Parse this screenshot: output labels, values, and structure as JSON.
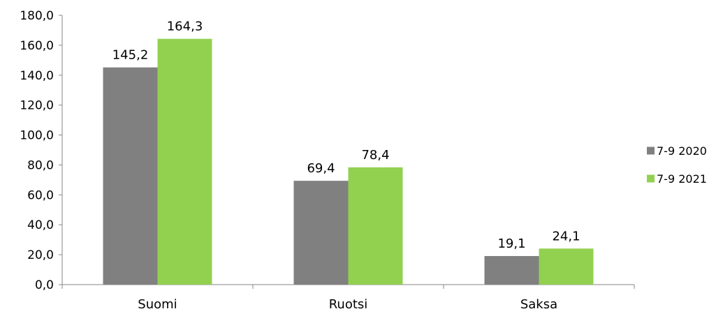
{
  "chart_data": {
    "type": "bar",
    "title": "",
    "xlabel": "",
    "ylabel": "",
    "categories": [
      "Suomi",
      "Ruotsi",
      "Saksa"
    ],
    "series": [
      {
        "name": "7-9 2020",
        "color": "#808080",
        "values": [
          145.2,
          69.4,
          19.1
        ],
        "labels": [
          "145,2",
          "69,4",
          "19,1"
        ]
      },
      {
        "name": "7-9 2021",
        "color": "#92d050",
        "values": [
          164.3,
          78.4,
          24.1
        ],
        "labels": [
          "164,3",
          "78,4",
          "24,1"
        ]
      }
    ],
    "ylim": [
      0,
      180
    ],
    "yticks": [
      0,
      20,
      40,
      60,
      80,
      100,
      120,
      140,
      160,
      180
    ],
    "ytick_labels": [
      "0,0",
      "20,0",
      "40,0",
      "60,0",
      "80,0",
      "100,0",
      "120,0",
      "140,0",
      "160,0",
      "180,0"
    ],
    "grid": false,
    "legend_position": "right"
  }
}
